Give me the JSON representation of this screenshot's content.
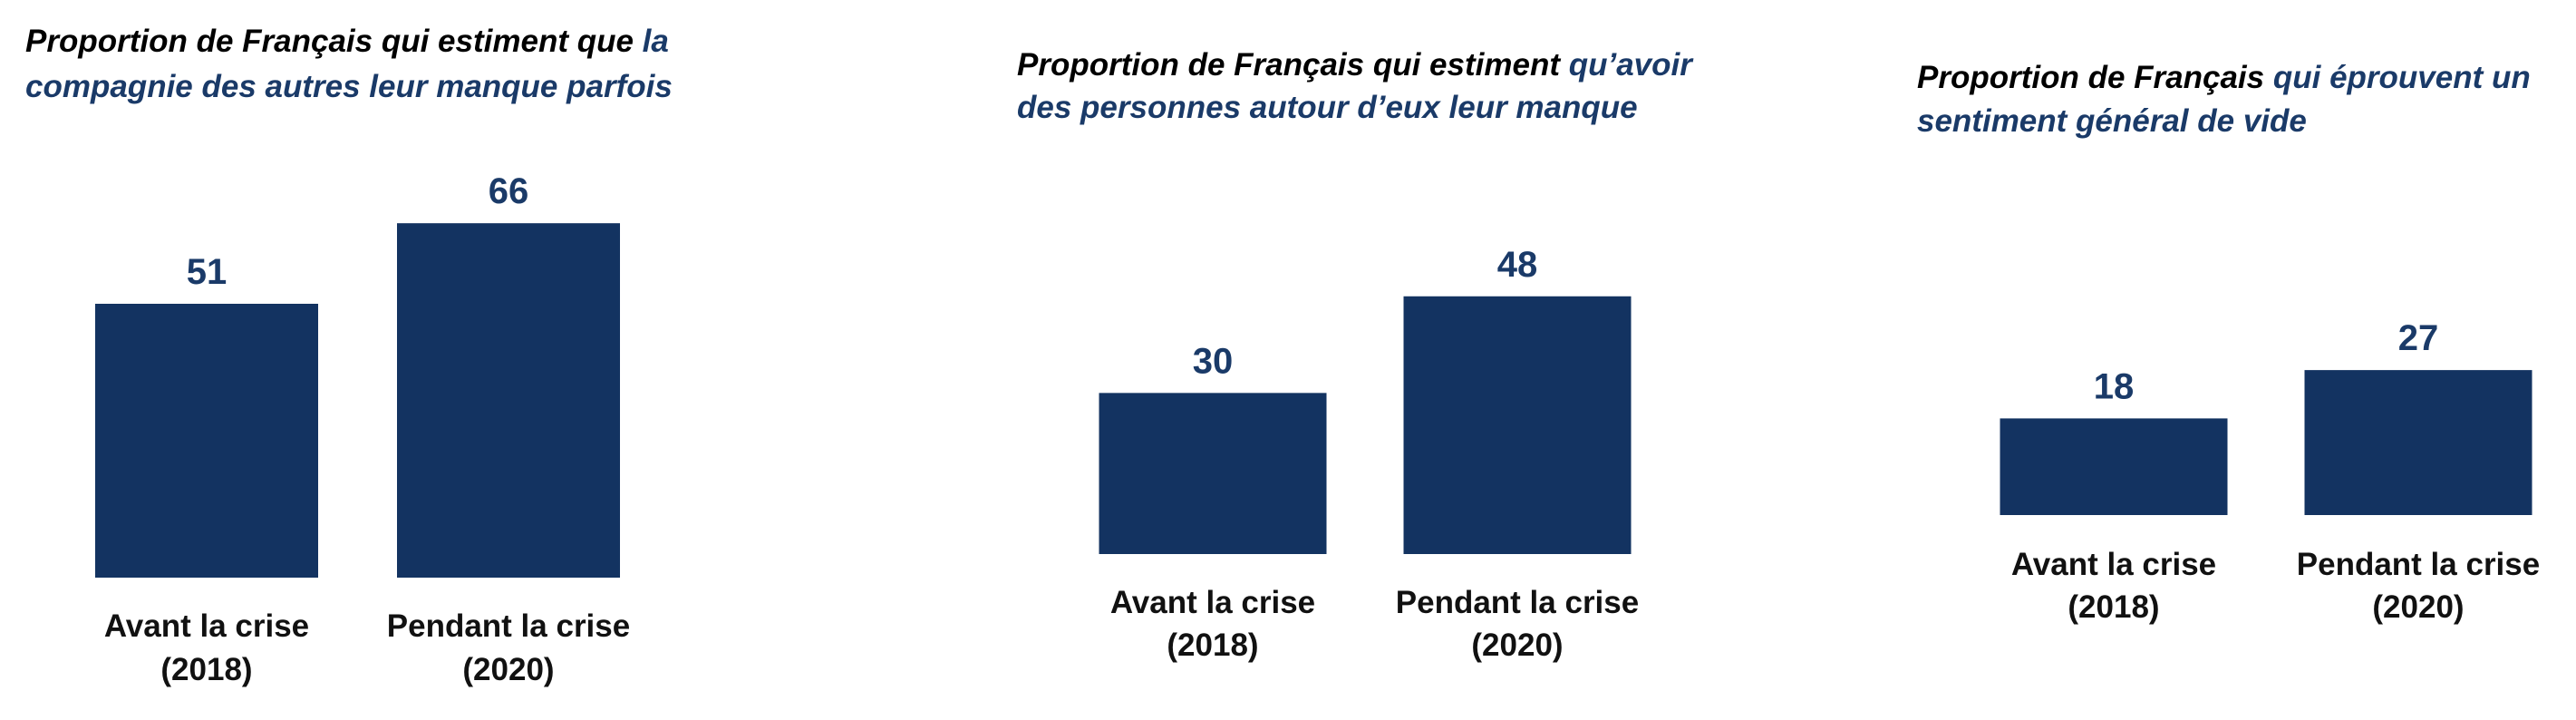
{
  "colors": {
    "bar": "#133361",
    "accent_text": "#1a3a68",
    "plain_text": "#000000"
  },
  "chart_data": [
    {
      "type": "bar",
      "title": "Proportion de Français qui estiment que la compagnie des autres leur manque parfois",
      "title_lines": [
        [
          {
            "text": "Proportion de Français qui estiment que ",
            "accent": false
          },
          {
            "text": "la",
            "accent": true
          }
        ],
        [
          {
            "text": "compagnie des autres leur manque parfois",
            "accent": true
          }
        ]
      ],
      "categories": [
        [
          "Avant la crise",
          "(2018)"
        ],
        [
          "Pendant la crise",
          "(2020)"
        ]
      ],
      "values": [
        51,
        66
      ],
      "value_labels": [
        "51",
        "66"
      ]
    },
    {
      "type": "bar",
      "title": "Proportion de Français qui estiment qu’avoir des personnes autour d’eux leur manque",
      "title_lines": [
        [
          {
            "text": "Proportion de Français qui estiment ",
            "accent": false
          },
          {
            "text": "qu’avoir",
            "accent": true
          }
        ],
        [
          {
            "text": "des personnes autour d’eux leur manque",
            "accent": true
          }
        ]
      ],
      "categories": [
        [
          "Avant la crise",
          "(2018)"
        ],
        [
          "Pendant la crise",
          "(2020)"
        ]
      ],
      "values": [
        30,
        48
      ],
      "value_labels": [
        "30",
        "48"
      ]
    },
    {
      "type": "bar",
      "title": "Proportion de Français qui éprouvent un sentiment général de vide",
      "title_lines": [
        [
          {
            "text": "Proportion de Français ",
            "accent": false
          },
          {
            "text": "qui éprouvent un",
            "accent": true
          }
        ],
        [
          {
            "text": "sentiment général de vide",
            "accent": true
          }
        ]
      ],
      "categories": [
        [
          "Avant la crise",
          "(2018)"
        ],
        [
          "Pendant la crise",
          "(2020)"
        ]
      ],
      "values": [
        18,
        27
      ],
      "value_labels": [
        "18",
        "27"
      ]
    }
  ]
}
